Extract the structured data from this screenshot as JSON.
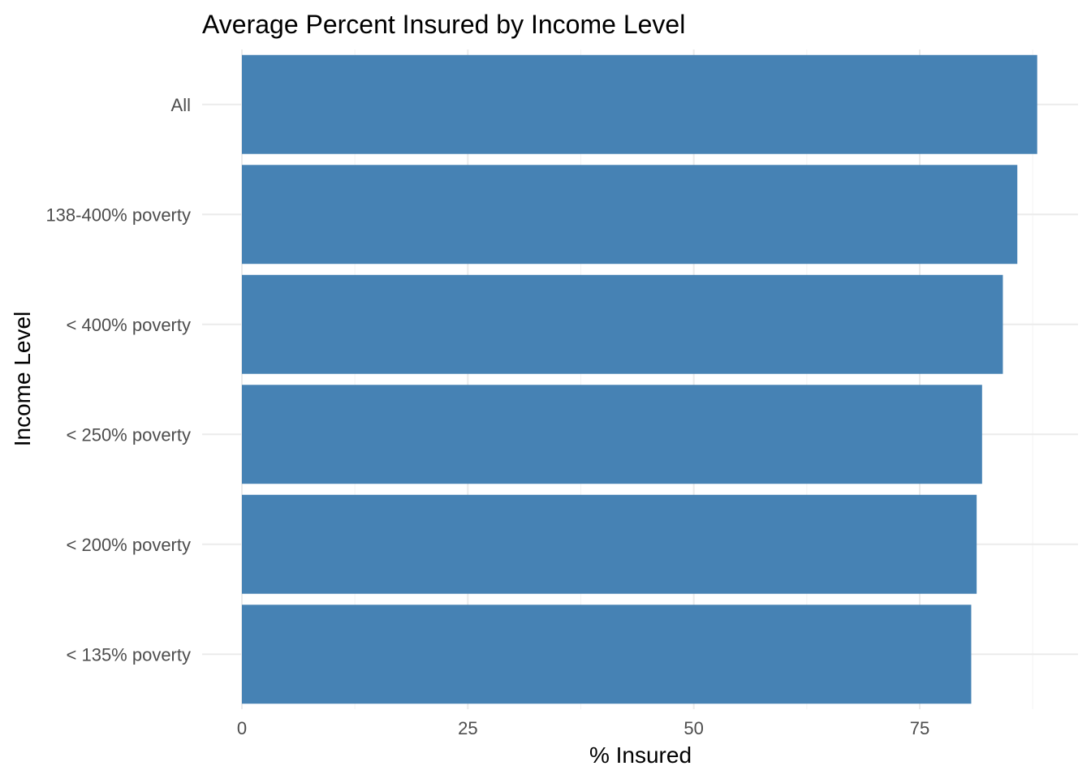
{
  "chart_data": {
    "type": "bar",
    "orientation": "horizontal",
    "title": "Average Percent Insured by Income Level",
    "xlabel": "% Insured",
    "ylabel": "Income Level",
    "categories": [
      "All",
      "138-400% poverty",
      "< 400% poverty",
      "< 250% poverty",
      "< 200% poverty",
      "< 135% poverty"
    ],
    "values": [
      88.0,
      85.8,
      84.2,
      81.9,
      81.3,
      80.7
    ],
    "xlim": [
      0,
      90
    ],
    "xticks": [
      0,
      25,
      50,
      75
    ],
    "xtick_labels": [
      "0",
      "25",
      "50",
      "75"
    ],
    "bar_color": "#4682B4",
    "grid": true,
    "legend": "none"
  }
}
